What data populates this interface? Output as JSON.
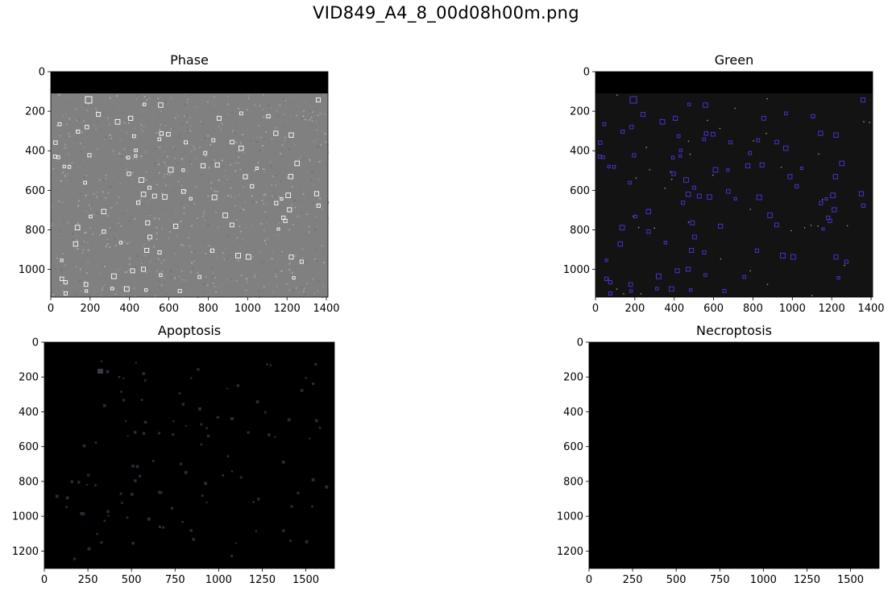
{
  "figure": {
    "suptitle": "VID849_A4_8_00d08h00m.png",
    "background_color": "#ffffff"
  },
  "panels": [
    {
      "key": "phase",
      "title": "Phase",
      "x_ticks": [
        "0",
        "200",
        "400",
        "600",
        "800",
        "1000",
        "1200",
        "1400"
      ],
      "y_ticks": [
        "0",
        "200",
        "400",
        "600",
        "800",
        "1000"
      ],
      "x_range": [
        0,
        1408
      ],
      "y_range": [
        0,
        1140
      ],
      "image_style": "grayscale cell micrograph, black band at top",
      "box_color": "#ffffff"
    },
    {
      "key": "green",
      "title": "Green",
      "x_ticks": [
        "0",
        "200",
        "400",
        "600",
        "800",
        "1000",
        "1200",
        "1400"
      ],
      "y_ticks": [
        "0",
        "200",
        "400",
        "600",
        "800",
        "1000"
      ],
      "x_range": [
        0,
        1408
      ],
      "y_range": [
        0,
        1140
      ],
      "image_style": "dark fluorescence image, black band at top",
      "box_color": "#5533dd"
    },
    {
      "key": "apoptosis",
      "title": "Apoptosis",
      "x_ticks": [
        "0",
        "250",
        "500",
        "750",
        "1000",
        "1250",
        "1500"
      ],
      "y_ticks": [
        "0",
        "200",
        "400",
        "600",
        "800",
        "1000",
        "1200"
      ],
      "x_range": [
        0,
        1664
      ],
      "y_range": [
        0,
        1300
      ],
      "image_style": "black image with faint dim spots",
      "box_color": "#2a2a3a"
    },
    {
      "key": "necroptosis",
      "title": "Necroptosis",
      "x_ticks": [
        "0",
        "250",
        "500",
        "750",
        "1000",
        "1250",
        "1500"
      ],
      "y_ticks": [
        "0",
        "200",
        "400",
        "600",
        "800",
        "1000",
        "1200"
      ],
      "x_range": [
        0,
        1664
      ],
      "y_range": [
        0,
        1300
      ],
      "image_style": "solid black image",
      "box_color": "#000000"
    }
  ]
}
